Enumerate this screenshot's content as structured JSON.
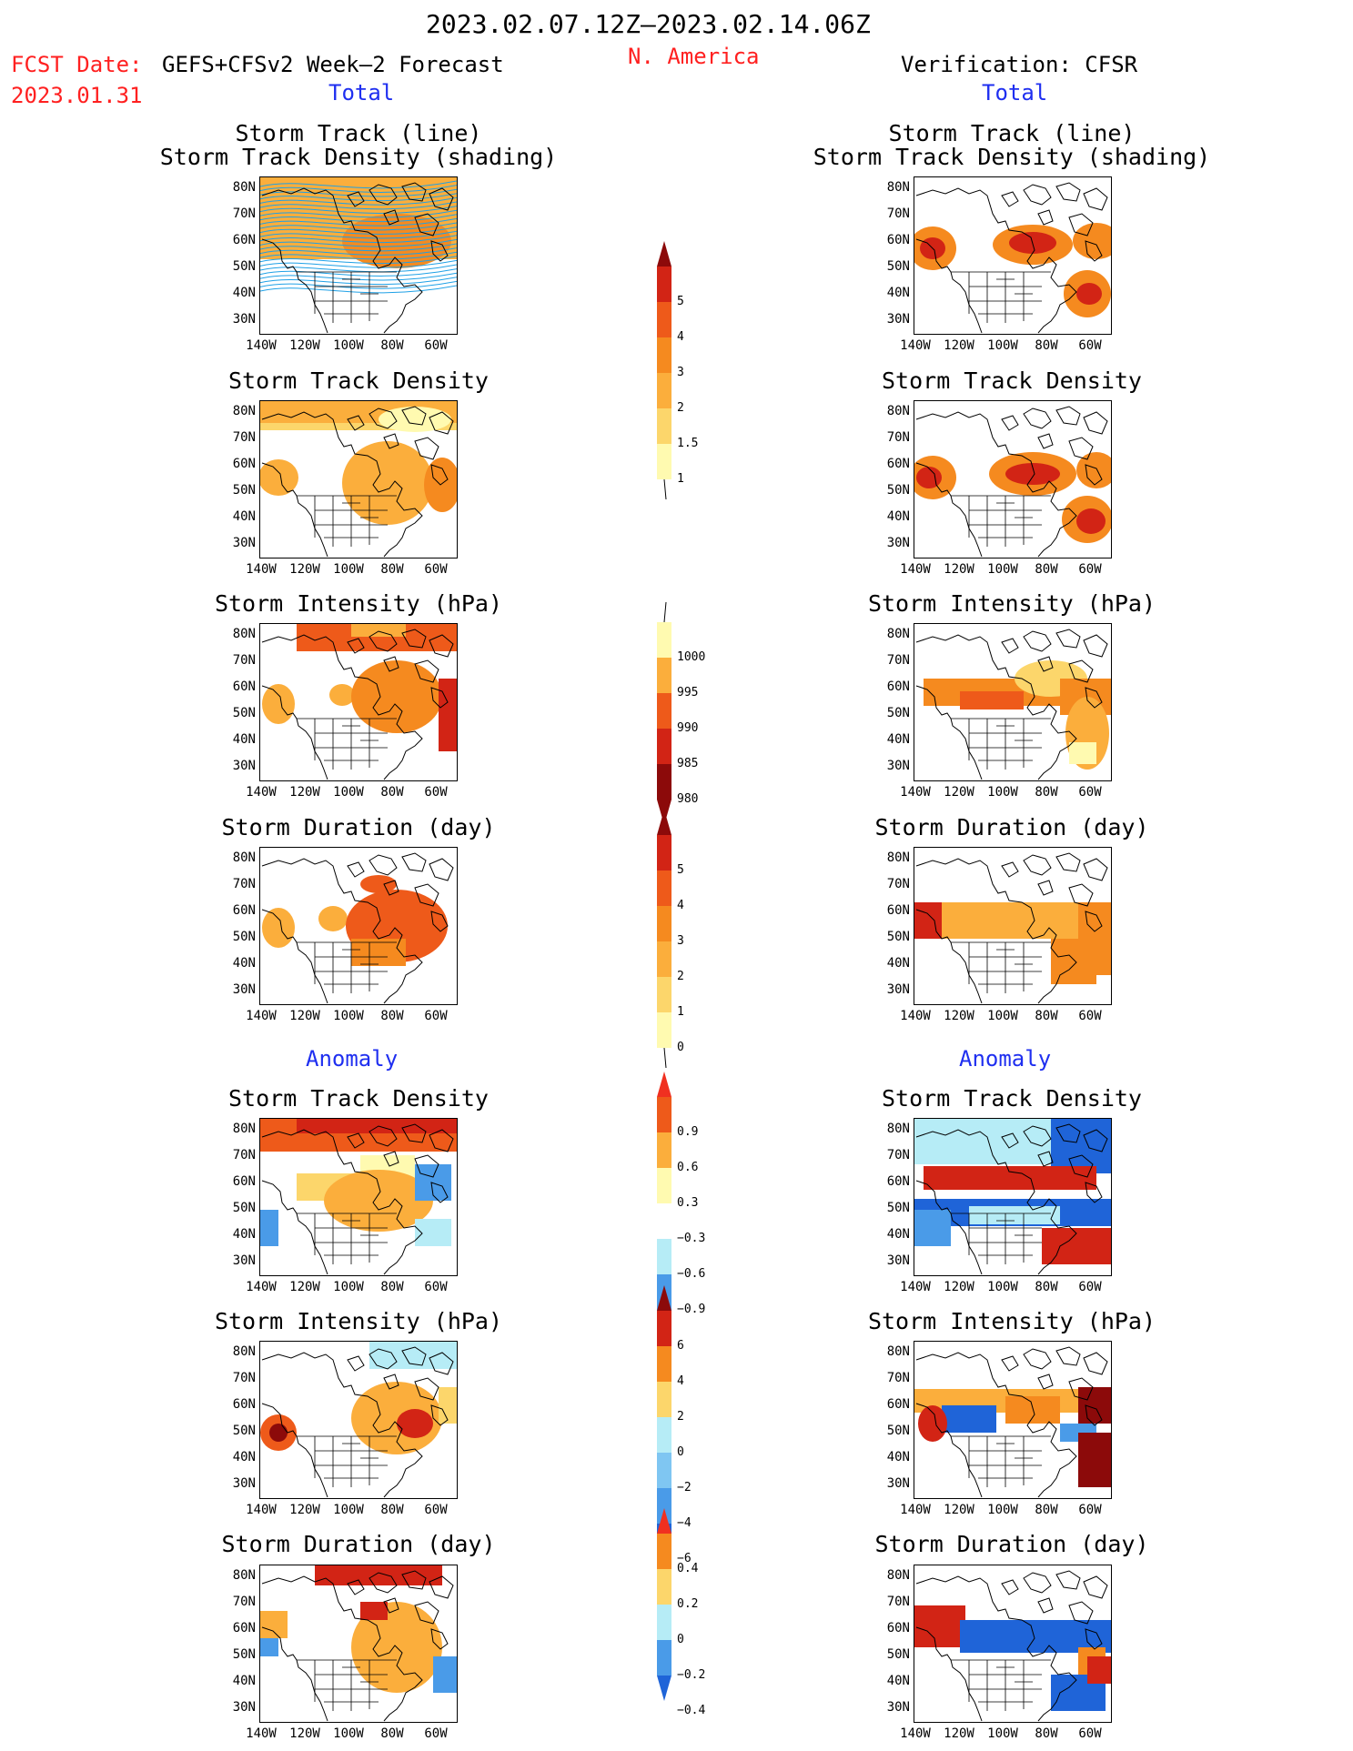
{
  "header": {
    "date_range": "2023.02.07.12Z–2023.02.14.06Z",
    "fcst_label": "FCST Date:",
    "fcst_date": "2023.01.31",
    "model": "GEFS+CFSv2 Week–2 Forecast",
    "region": "N. America",
    "verification": "Verification: CFSR"
  },
  "sections": {
    "total_left": "Total",
    "total_right": "Total",
    "anomaly_left": "Anomaly",
    "anomaly_right": "Anomaly"
  },
  "panel_titles": {
    "track_line": "Storm Track (line)",
    "track_shading": "Storm Track Density (shading)",
    "density": "Storm Track Density",
    "intensity": "Storm Intensity (hPa)",
    "duration": "Storm Duration (day)"
  },
  "axes": {
    "lat_labels": [
      "80N",
      "70N",
      "60N",
      "50N",
      "40N",
      "30N"
    ],
    "lon_labels": [
      "140W",
      "120W",
      "100W",
      "80W",
      "60W"
    ]
  },
  "colorbars": {
    "total_density": [
      "5",
      "4",
      "3",
      "2",
      "1.5",
      "1"
    ],
    "total_intensity": [
      "1000",
      "995",
      "990",
      "985",
      "980"
    ],
    "total_duration": [
      "5",
      "4",
      "3",
      "2",
      "1",
      "0"
    ],
    "anom_density": [
      "0.9",
      "0.6",
      "0.3",
      "−0.3",
      "−0.6",
      "−0.9"
    ],
    "anom_intensity": [
      "6",
      "4",
      "2",
      "0",
      "−2",
      "−4",
      "−6"
    ],
    "anom_duration": [
      "0.4",
      "0.2",
      "0",
      "−0.2",
      "−0.4"
    ]
  },
  "colors": {
    "warm": [
      "#fffab0",
      "#fcd66b",
      "#fbae3c",
      "#f58a1f",
      "#ee5a1a",
      "#d22415",
      "#8c0a0a"
    ],
    "cool": [
      "#b6ecf6",
      "#7fc6f2",
      "#4a9be8",
      "#1f64d8"
    ],
    "track_lines": "#1ea0e6"
  }
}
